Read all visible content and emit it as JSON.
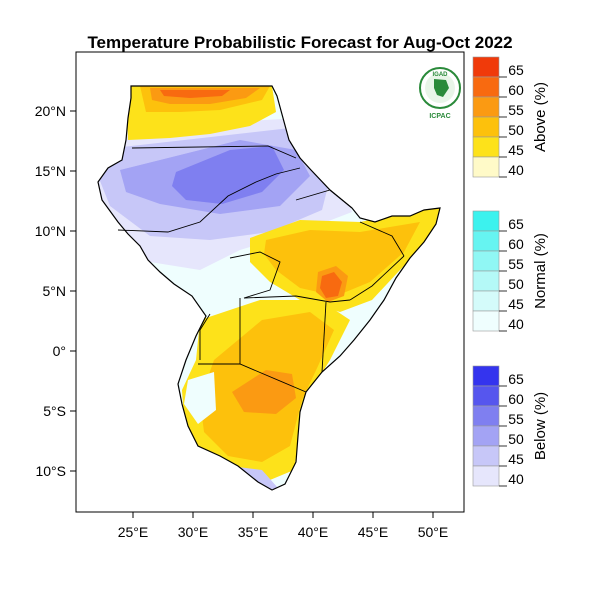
{
  "map": {
    "title": "Temperature Probabilistic Forecast for Aug-Oct 2022",
    "logo": {
      "top_text": "IGAD",
      "bottom_text": "ICPAC"
    },
    "lat_ticks": [
      "20°N",
      "15°N",
      "10°N",
      "5°N",
      "0°",
      "5°S",
      "10°S"
    ],
    "lon_ticks": [
      "25°E",
      "30°E",
      "35°E",
      "40°E",
      "45°E",
      "50°E"
    ],
    "legend": [
      {
        "label": "Above (%)",
        "values": [
          "65",
          "60",
          "55",
          "50",
          "45",
          "40"
        ],
        "colors": [
          "#f03a0a",
          "#f86a10",
          "#fb9a12",
          "#fdc10c",
          "#fde21a",
          "#fffac8"
        ]
      },
      {
        "label": "Normal (%)",
        "values": [
          "65",
          "60",
          "55",
          "50",
          "45",
          "40"
        ],
        "colors": [
          "#3cf2ee",
          "#66f4f1",
          "#90f7f4",
          "#b4f9f7",
          "#d4fbfa",
          "#effefe"
        ]
      },
      {
        "label": "Below (%)",
        "values": [
          "65",
          "60",
          "55",
          "50",
          "45",
          "40"
        ],
        "colors": [
          "#3434ee",
          "#5656ee",
          "#7f7ff0",
          "#a3a3f4",
          "#c7c7f8",
          "#e6e6fc"
        ]
      }
    ]
  }
}
